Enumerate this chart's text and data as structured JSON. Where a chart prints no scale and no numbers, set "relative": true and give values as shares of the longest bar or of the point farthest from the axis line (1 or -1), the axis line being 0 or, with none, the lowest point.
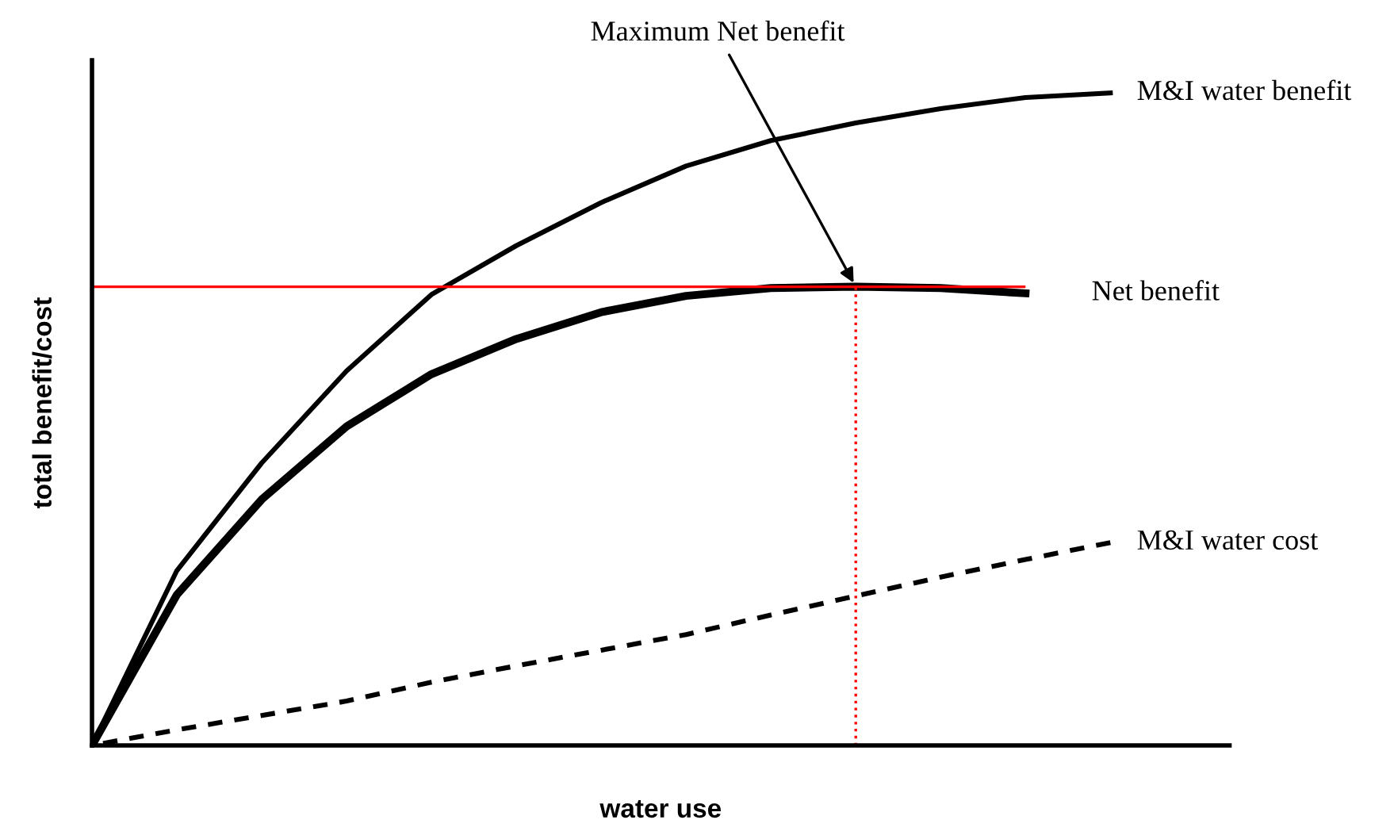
{
  "chart_data": {
    "type": "line",
    "relative": true,
    "xlabel": "water use",
    "ylabel": "total benefit/cost",
    "legend": false,
    "marker": "none",
    "categories": [
      null,
      null,
      null,
      null,
      null,
      null,
      null,
      null,
      null,
      null,
      null,
      null,
      null
    ],
    "series": [
      {
        "name": "M&I water benefit",
        "color": "#000000",
        "line_style": "solid",
        "values": [
          0,
          0.268,
          0.433,
          0.574,
          0.691,
          0.766,
          0.832,
          0.888,
          0.927,
          0.954,
          0.976,
          0.993,
          1.0
        ]
      },
      {
        "name": "Net benefit",
        "color": "#000000",
        "line_style": "solid",
        "values": [
          0,
          0.231,
          0.377,
          0.489,
          0.569,
          0.623,
          0.664,
          0.689,
          0.701,
          0.703,
          0.701,
          0.693,
          null
        ]
      },
      {
        "name": "M&I water cost",
        "color": "#000000",
        "line_style": "dashed",
        "values": [
          0,
          0.024,
          0.046,
          0.068,
          0.097,
          0.122,
          0.146,
          0.17,
          0.2,
          0.229,
          0.258,
          0.285,
          0.311
        ]
      }
    ],
    "ref_lines": [
      {
        "axis": "y",
        "value": 0.703,
        "color": "#ff0000",
        "line_style": "solid"
      }
    ],
    "annotations": [
      "Maximum Net benefit"
    ]
  }
}
